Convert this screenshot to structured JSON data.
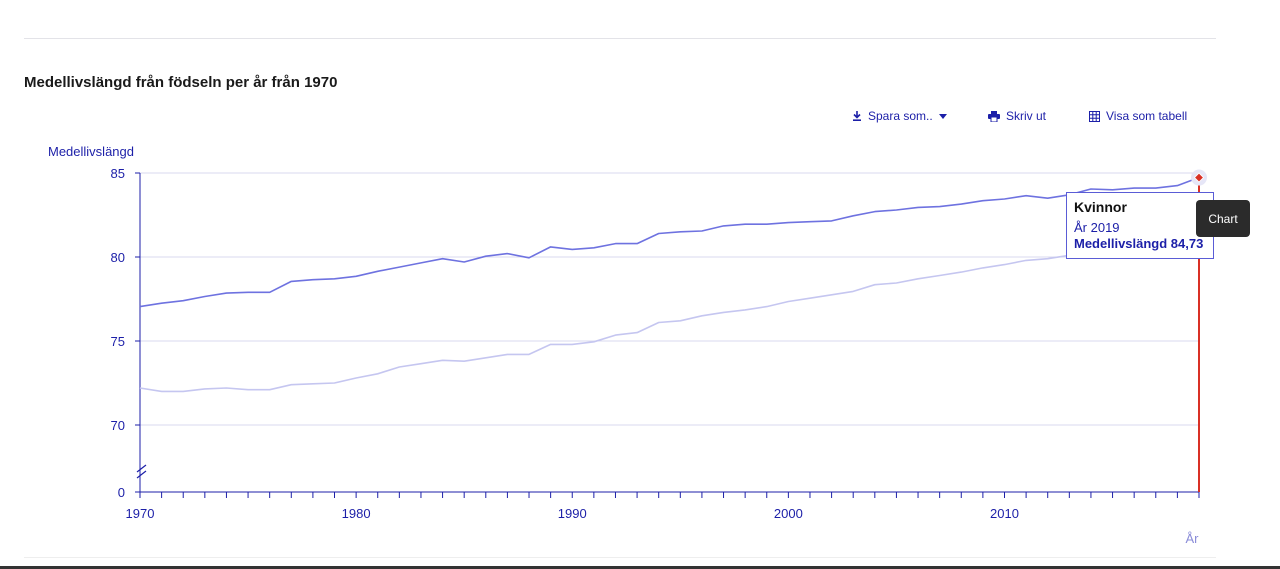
{
  "chart_data": {
    "type": "line",
    "title": "Medellivslängd från födseln per år från 1970",
    "ylabel": "Medellivslängd",
    "xlabel": "År",
    "ylim": [
      0,
      85
    ],
    "axis_break": [
      0,
      70
    ],
    "yticks": [
      0,
      70,
      75,
      80,
      85
    ],
    "xlim": [
      1970,
      2019
    ],
    "xtick_labels": [
      1970,
      1980,
      1990,
      2000,
      2010
    ],
    "x": [
      1970,
      1971,
      1972,
      1973,
      1974,
      1975,
      1976,
      1977,
      1978,
      1979,
      1980,
      1981,
      1982,
      1983,
      1984,
      1985,
      1986,
      1987,
      1988,
      1989,
      1990,
      1991,
      1992,
      1993,
      1994,
      1995,
      1996,
      1997,
      1998,
      1999,
      2000,
      2001,
      2002,
      2003,
      2004,
      2005,
      2006,
      2007,
      2008,
      2009,
      2010,
      2011,
      2012,
      2013,
      2014,
      2015,
      2016,
      2017,
      2018,
      2019
    ],
    "series": [
      {
        "name": "Kvinnor",
        "color": "#6e72e0",
        "values": [
          77.05,
          77.25,
          77.4,
          77.65,
          77.85,
          77.9,
          77.9,
          78.55,
          78.65,
          78.7,
          78.85,
          79.15,
          79.4,
          79.65,
          79.9,
          79.7,
          80.05,
          80.2,
          79.95,
          80.6,
          80.45,
          80.55,
          80.8,
          80.8,
          81.4,
          81.5,
          81.55,
          81.85,
          81.95,
          81.95,
          82.05,
          82.1,
          82.15,
          82.45,
          82.7,
          82.8,
          82.95,
          83.0,
          83.15,
          83.35,
          83.45,
          83.65,
          83.5,
          83.7,
          84.05,
          84.0,
          84.1,
          84.1,
          84.25,
          84.73
        ]
      },
      {
        "name": "",
        "color": "#c5c6f0",
        "values": [
          72.2,
          72.0,
          72.0,
          72.15,
          72.2,
          72.1,
          72.1,
          72.4,
          72.45,
          72.5,
          72.8,
          73.05,
          73.45,
          73.65,
          73.85,
          73.8,
          74.0,
          74.2,
          74.2,
          74.8,
          74.8,
          74.95,
          75.35,
          75.5,
          76.1,
          76.2,
          76.5,
          76.7,
          76.85,
          77.05,
          77.35,
          77.55,
          77.75,
          77.95,
          78.35,
          78.45,
          78.7,
          78.9,
          79.1,
          79.35,
          79.55,
          79.8,
          79.9,
          80.1,
          80.3,
          80.5,
          80.7,
          80.8,
          80.9,
          81.2
        ]
      }
    ],
    "highlight": {
      "series": "Kvinnor",
      "x": 2019,
      "value": 84.73
    },
    "grid": true
  },
  "toolbar": {
    "save_label": "Spara som..",
    "print_label": "Skriv ut",
    "table_label": "Visa som tabell"
  },
  "tooltip": {
    "series": "Kvinnor",
    "year": "År 2019",
    "value": "Medellivslängd 84,73"
  },
  "chip": {
    "label": "Chart"
  },
  "colors": {
    "accent": "#1c1fa8",
    "highlight": "#d93025",
    "grid": "#d8d8ef"
  }
}
